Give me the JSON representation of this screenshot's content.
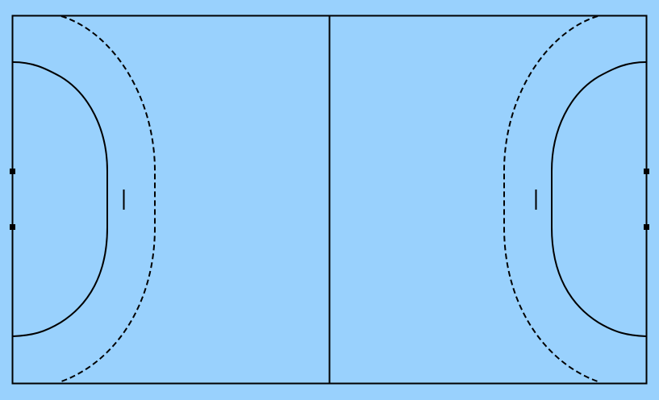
{
  "court": {
    "type": "handball-court",
    "background_color": "#99d1fd",
    "line_color": "#000000"
  }
}
